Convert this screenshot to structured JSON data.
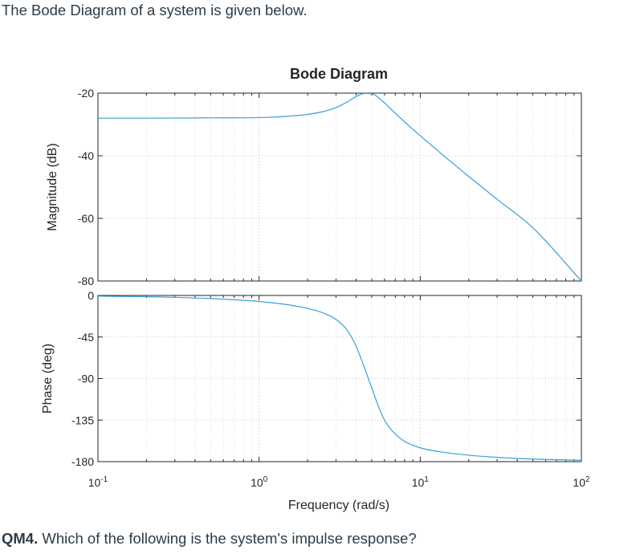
{
  "intro_text": "The Bode Diagram of a system is given below.",
  "question": {
    "label": "QM4.",
    "text": " Which of the following is the system's impulse response?"
  },
  "chart_data": {
    "type": "line",
    "title": "Bode Diagram",
    "xlabel": "Frequency (rad/s)",
    "x_scale": "log",
    "xlim": [
      0.1,
      100
    ],
    "x_ticks": [
      {
        "value": 0.1,
        "base": "10",
        "exp": "-1"
      },
      {
        "value": 1,
        "base": "10",
        "exp": "0"
      },
      {
        "value": 10,
        "base": "10",
        "exp": "1"
      },
      {
        "value": 100,
        "base": "10",
        "exp": "2"
      }
    ],
    "grid": true,
    "line_color": "#3b9fd9",
    "panels": [
      {
        "name": "magnitude",
        "ylabel": "Magnitude (dB)",
        "ylim": [
          -80,
          -20
        ],
        "y_ticks": [
          -20,
          -40,
          -60,
          -80
        ],
        "y_tick_labels": [
          "-20",
          "-40",
          "-60",
          "-80"
        ],
        "series": [
          {
            "x": [
              0.1,
              0.2,
              0.5,
              1,
              1.5,
              2,
              2.5,
              3,
              3.5,
              4,
              4.5,
              5,
              5.5,
              6,
              7,
              8,
              10,
              15,
              20,
              30,
              50,
              100
            ],
            "y": [
              -28,
              -28,
              -27.9,
              -27.8,
              -27.4,
              -26.8,
              -25.9,
              -24.6,
              -22.9,
              -21.1,
              -20.1,
              -20.2,
              -21.4,
              -23.1,
              -26.4,
              -29.2,
              -33.6,
              -41.3,
              -46.6,
              -53.9,
              -63,
              -80
            ]
          }
        ]
      },
      {
        "name": "phase",
        "ylabel": "Phase (deg)",
        "ylim": [
          -180,
          0
        ],
        "y_ticks": [
          0,
          -45,
          -90,
          -135,
          -180
        ],
        "y_tick_labels": [
          "0",
          "-45",
          "-90",
          "-135",
          "-180"
        ],
        "series": [
          {
            "x": [
              0.1,
              0.3,
              0.6,
              1,
              1.5,
              2,
              2.5,
              3,
              3.5,
              4,
              4.5,
              5,
              5.5,
              6,
              7,
              8,
              10,
              15,
              20,
              30,
              50,
              100
            ],
            "y": [
              -0.7,
              -2,
              -4,
              -6.5,
              -10,
              -14,
              -19,
              -26,
              -37,
              -55,
              -78,
              -100,
              -120,
              -135,
              -150,
              -158,
              -165,
              -170.6,
              -173,
              -175.3,
              -177.2,
              -178.5
            ]
          }
        ]
      }
    ]
  }
}
